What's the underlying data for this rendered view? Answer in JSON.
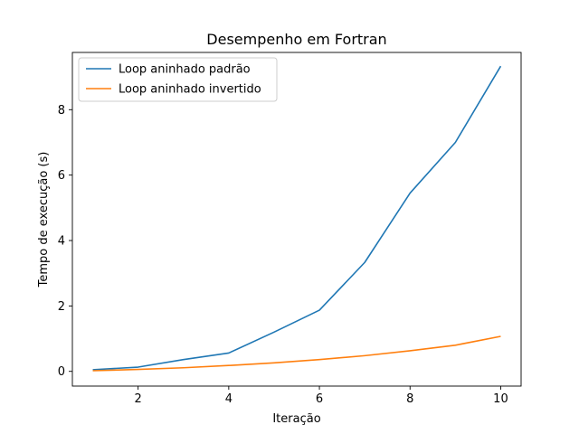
{
  "chart_data": {
    "type": "line",
    "title": "Desempenho em Fortran",
    "xlabel": "Iteração",
    "ylabel": "Tempo de execução (s)",
    "xlim": [
      0.55,
      10.45
    ],
    "ylim": [
      -0.45,
      9.75
    ],
    "x_ticks": [
      2,
      4,
      6,
      8,
      10
    ],
    "y_ticks": [
      0,
      2,
      4,
      6,
      8
    ],
    "grid": false,
    "legend_position": "top-left",
    "x": [
      1,
      2,
      3,
      4,
      5,
      6,
      7,
      8,
      9,
      10
    ],
    "series": [
      {
        "name": "Loop aninhado padrão",
        "color": "#1f77b4",
        "values": [
          0.05,
          0.13,
          0.36,
          0.56,
          1.2,
          1.87,
          3.33,
          5.45,
          7.0,
          9.33
        ]
      },
      {
        "name": "Loop aninhado invertido",
        "color": "#ff7f0e",
        "values": [
          0.02,
          0.06,
          0.11,
          0.18,
          0.26,
          0.36,
          0.48,
          0.63,
          0.8,
          1.07
        ]
      }
    ]
  }
}
